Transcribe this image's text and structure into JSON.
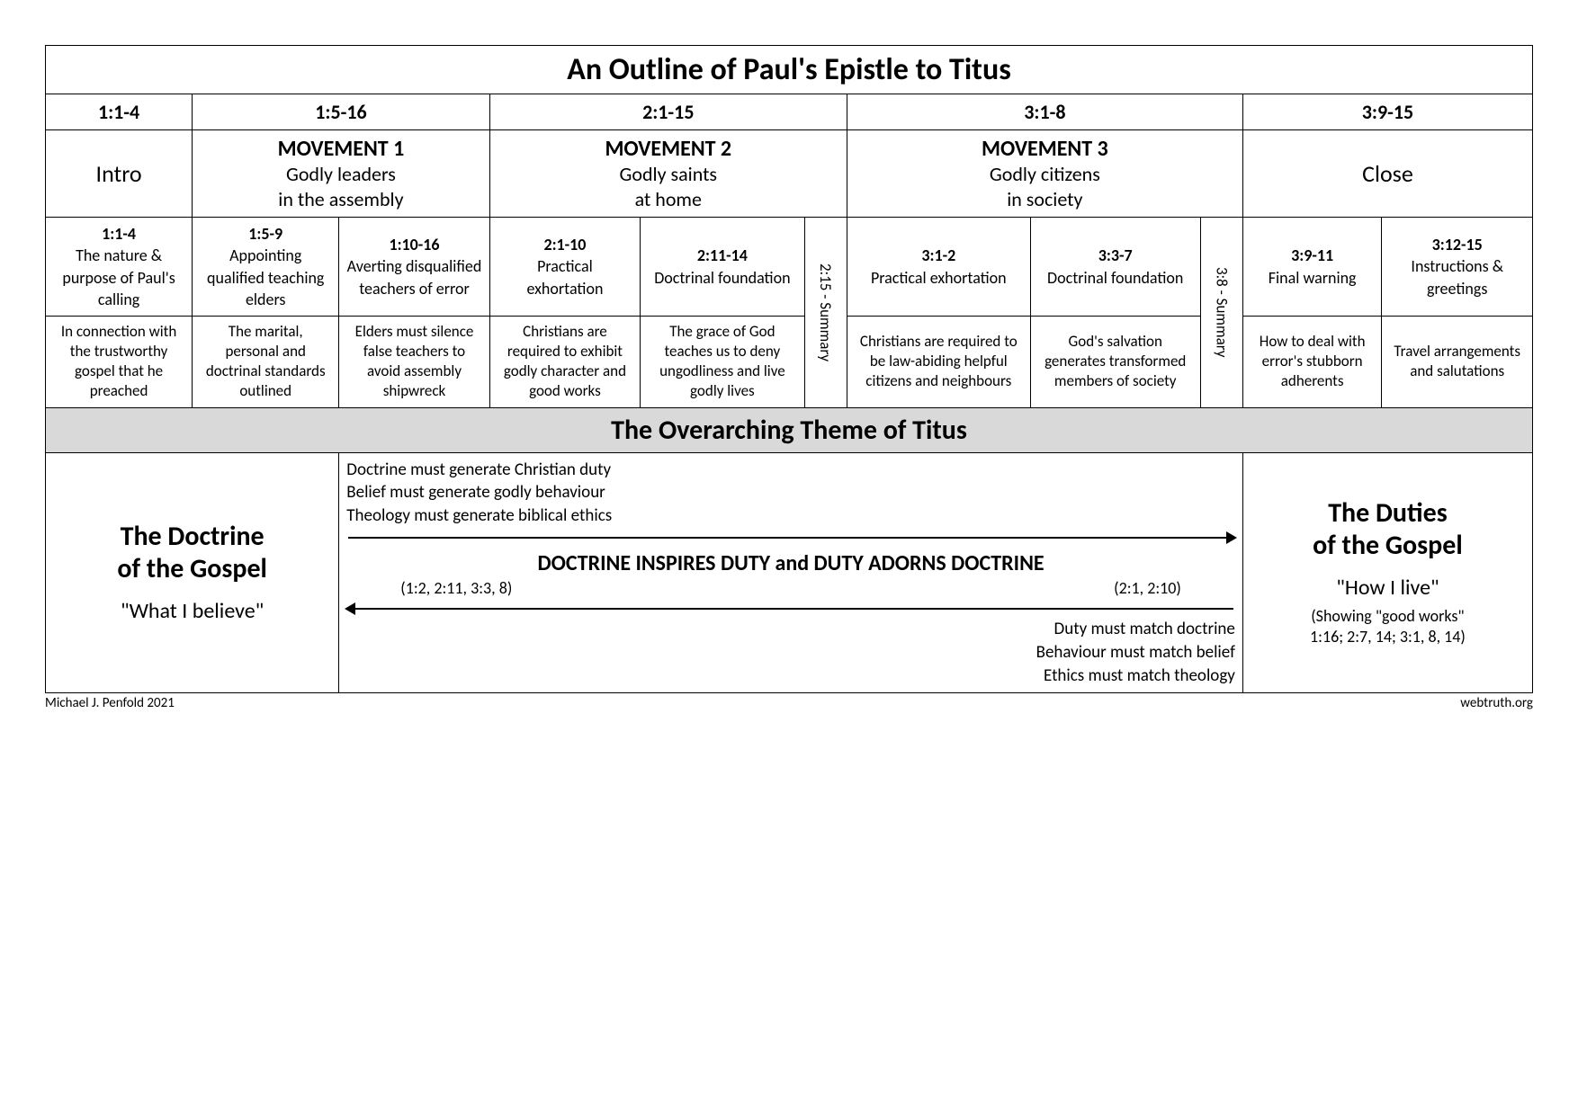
{
  "title": "An Outline of Paul's Epistle to Titus",
  "colWidths": {
    "intro": 152,
    "m1a": 152,
    "m1b": 156,
    "m2a": 156,
    "m2b": 170,
    "sum2": 44,
    "m3a": 190,
    "m3b": 176,
    "sum3": 44,
    "c1": 144,
    "c2": 156
  },
  "verseHeaders": {
    "intro": "1:1-4",
    "m1": "1:5-16",
    "m2": "2:1-15",
    "m3": "3:1-8",
    "close": "3:9-15"
  },
  "movements": {
    "intro": "Intro",
    "m1": {
      "title": "MOVEMENT 1",
      "sub1": "Godly leaders",
      "sub2": "in the assembly"
    },
    "m2": {
      "title": "MOVEMENT 2",
      "sub1": "Godly saints",
      "sub2": "at home"
    },
    "m3": {
      "title": "MOVEMENT 3",
      "sub1": "Godly citizens",
      "sub2": "in society"
    },
    "close": "Close"
  },
  "sections": {
    "intro": {
      "ref": "1:1-4",
      "text": "The nature & purpose of Paul's calling"
    },
    "m1a": {
      "ref": "1:5-9",
      "text": "Appointing qualified teaching elders"
    },
    "m1b": {
      "ref": "1:10-16",
      "text": "Averting disqualified teachers of error"
    },
    "m2a": {
      "ref": "2:1-10",
      "text": "Practical exhortation"
    },
    "m2b": {
      "ref": "2:11-14",
      "text": "Doctrinal foundation"
    },
    "sum2": "2:15 - Summary",
    "m3a": {
      "ref": "3:1-2",
      "text": "Practical exhortation"
    },
    "m3b": {
      "ref": "3:3-7",
      "text": "Doctrinal foundation"
    },
    "sum3": "3:8 - Summary",
    "c1": {
      "ref": "3:9-11",
      "text": "Final warning"
    },
    "c2": {
      "ref": "3:12-15",
      "text": "Instructions & greetings"
    }
  },
  "descriptions": {
    "intro": "In connection with the trustworthy gospel that he preached",
    "m1a": "The marital, personal and doctrinal standards outlined",
    "m1b": "Elders must silence false teachers to avoid assembly shipwreck",
    "m2a": "Christians are required to exhibit godly character and good works",
    "m2b": "The grace of God teaches us to deny ungodliness and live godly lives",
    "m3a": "Christians are required to be law-abiding helpful citizens and neighbours",
    "m3b": "God's salvation generates transformed members of society",
    "c1": "How to deal with error's stubborn adherents",
    "c2": "Travel arrangements and salutations"
  },
  "themeBanner": "The Overarching Theme of Titus",
  "bottom": {
    "left": {
      "line1": "The Doctrine",
      "line2": "of the Gospel",
      "quote": "\"What I believe\""
    },
    "right": {
      "line1": "The Duties",
      "line2": "of the Gospel",
      "quote": "\"How I live\"",
      "note1": "(Showing \"good works\"",
      "note2": "1:16; 2:7, 14; 3:1, 8, 14)"
    },
    "mid": {
      "top1": "Doctrine must generate Christian duty",
      "top2": "Belief must generate godly behaviour",
      "top3": "Theology must generate biblical ethics",
      "center": "DOCTRINE INSPIRES DUTY and DUTY ADORNS DOCTRINE",
      "refL": "(1:2, 2:11, 3:3, 8)",
      "refR": "(2:1, 2:10)",
      "bot1": "Duty must match doctrine",
      "bot2": "Behaviour must match belief",
      "bot3": "Ethics must match theology"
    }
  },
  "credits": {
    "left": "Michael J. Penfold 2021",
    "right": "webtruth.org"
  }
}
